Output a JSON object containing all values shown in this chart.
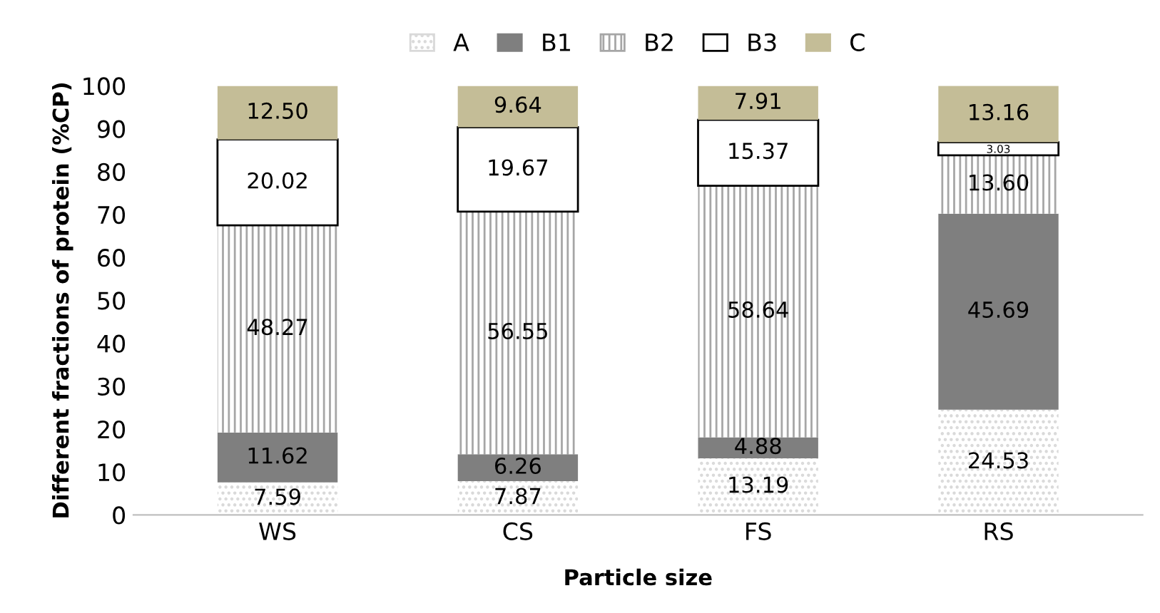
{
  "chart_data": {
    "type": "bar",
    "stacked": true,
    "xlabel": "Particle size",
    "ylabel": "Different fractions of protein (%CP)",
    "categories": [
      "WS",
      "CS",
      "FS",
      "RS"
    ],
    "series": [
      {
        "name": "A",
        "color": "#d9d9d9",
        "values": [
          7.59,
          7.87,
          13.19,
          24.53
        ],
        "value_labels": [
          "7.59",
          "7.87",
          "13.19",
          "24.53"
        ]
      },
      {
        "name": "B1",
        "color": "#7f7f7f",
        "values": [
          11.62,
          6.26,
          4.88,
          45.69
        ],
        "value_labels": [
          "11.62",
          "6.26",
          "4.88",
          "45.69"
        ]
      },
      {
        "name": "B2",
        "color": "#a6a6a6",
        "values": [
          48.27,
          56.55,
          58.64,
          13.6
        ],
        "value_labels": [
          "48.27",
          "56.55",
          "58.64",
          "13.60"
        ]
      },
      {
        "name": "B3",
        "color": "#ffffff",
        "values": [
          20.02,
          19.67,
          15.37,
          3.03
        ],
        "value_labels": [
          "20.02",
          "19.67",
          "15.37",
          "3.03"
        ]
      },
      {
        "name": "C",
        "color": "#c4bd97",
        "values": [
          12.5,
          9.64,
          7.91,
          13.16
        ],
        "value_labels": [
          "12.50",
          "9.64",
          "7.91",
          "13.16"
        ]
      }
    ],
    "ylim": [
      0,
      100
    ],
    "yticks": [
      0,
      10,
      20,
      30,
      40,
      50,
      60,
      70,
      80,
      90,
      100
    ],
    "grid": false,
    "legend": "top"
  }
}
